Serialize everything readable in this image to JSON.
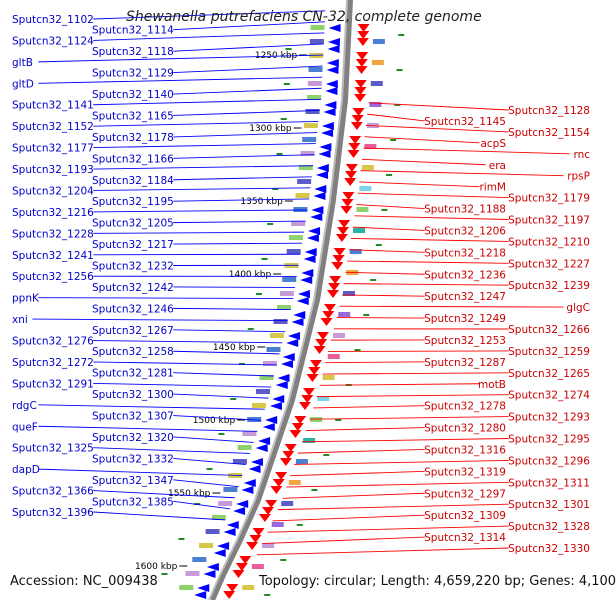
{
  "title": "Shewanella putrefaciens CN-32, complete genome",
  "footer": {
    "accession": "Accession: NC_009438",
    "topology": "Topology: circular; Length: 4,659,220 bp; Genes: 4,100"
  },
  "colors": {
    "forward": "#0000ff",
    "reverse": "#ff0000",
    "backbone": "#808080",
    "gc_skew": "#228b22"
  },
  "scale_labels": [
    "1250 kbp",
    "1300 kbp",
    "1350 kbp",
    "1400 kbp",
    "1450 kbp",
    "1500 kbp",
    "1550 kbp",
    "1600 kbp"
  ],
  "forward_genes": [
    "Sputcn32_1102",
    "Sputcn32_1114",
    "Sputcn32_1124",
    "Sputcn32_1118",
    "gltB",
    "Sputcn32_1129",
    "gltD",
    "Sputcn32_1140",
    "Sputcn32_1141",
    "Sputcn32_1165",
    "Sputcn32_1152",
    "Sputcn32_1178",
    "Sputcn32_1177",
    "Sputcn32_1166",
    "Sputcn32_1193",
    "Sputcn32_1184",
    "Sputcn32_1204",
    "Sputcn32_1195",
    "Sputcn32_1216",
    "Sputcn32_1205",
    "Sputcn32_1228",
    "Sputcn32_1217",
    "Sputcn32_1241",
    "Sputcn32_1232",
    "Sputcn32_1256",
    "Sputcn32_1242",
    "ppnK",
    "Sputcn32_1246",
    "xni",
    "Sputcn32_1267",
    "Sputcn32_1276",
    "Sputcn32_1258",
    "Sputcn32_1272",
    "Sputcn32_1281",
    "Sputcn32_1291",
    "Sputcn32_1300",
    "rdgC",
    "Sputcn32_1307",
    "queF",
    "Sputcn32_1320",
    "Sputcn32_1325",
    "Sputcn32_1332",
    "dapD",
    "Sputcn32_1347",
    "Sputcn32_1366",
    "Sputcn32_1385",
    "Sputcn32_1396"
  ],
  "reverse_genes": [
    "Sputcn32_1128",
    "Sputcn32_1145",
    "Sputcn32_1154",
    "acpS",
    "rnc",
    "era",
    "rpsP",
    "rimM",
    "Sputcn32_1179",
    "Sputcn32_1188",
    "Sputcn32_1197",
    "Sputcn32_1206",
    "Sputcn32_1210",
    "Sputcn32_1218",
    "Sputcn32_1227",
    "Sputcn32_1236",
    "Sputcn32_1239",
    "Sputcn32_1247",
    "glgC",
    "Sputcn32_1249",
    "Sputcn32_1266",
    "Sputcn32_1253",
    "Sputcn32_1259",
    "Sputcn32_1287",
    "Sputcn32_1265",
    "motB",
    "Sputcn32_1274",
    "Sputcn32_1278",
    "Sputcn32_1293",
    "Sputcn32_1280",
    "Sputcn32_1295",
    "Sputcn32_1316",
    "Sputcn32_1296",
    "Sputcn32_1319",
    "Sputcn32_1311",
    "Sputcn32_1297",
    "Sputcn32_1301",
    "Sputcn32_1309",
    "Sputcn32_1328",
    "Sputcn32_1314",
    "Sputcn32_1330"
  ]
}
